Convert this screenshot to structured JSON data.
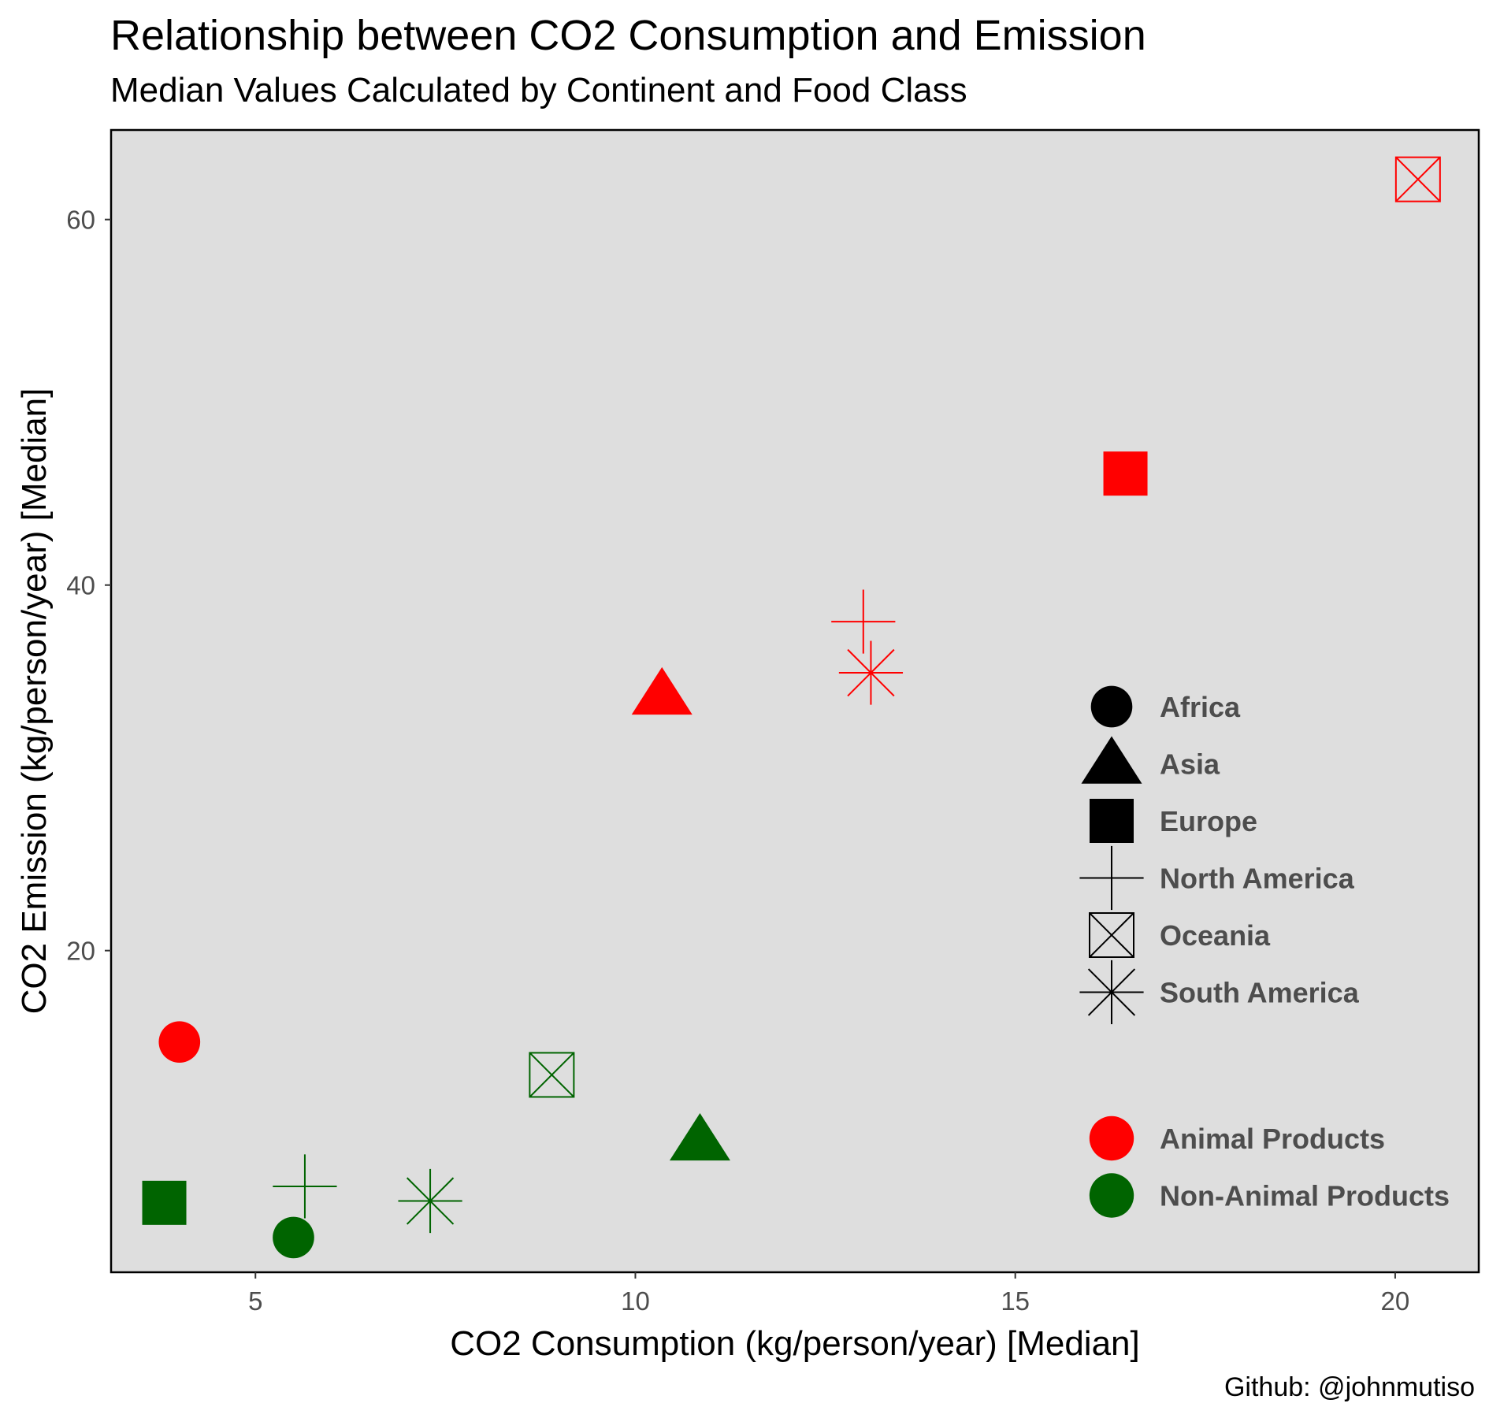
{
  "chart_data": {
    "type": "scatter",
    "title": "Relationship between CO2 Consumption and Emission",
    "subtitle": "Median Values Calculated by Continent and Food Class",
    "xlabel": "CO2 Consumption (kg/person/year) [Median]",
    "ylabel": "CO2 Emission (kg/person/year) [Median]",
    "caption": "Github: @johnmutiso",
    "xlim": [
      3.1,
      21.1
    ],
    "ylim": [
      2.4,
      64.9
    ],
    "x_ticks": [
      5,
      10,
      15,
      20
    ],
    "y_ticks": [
      20,
      40,
      60
    ],
    "grid": false,
    "background": "#dedede",
    "shape_legend": {
      "position": "right",
      "entries": [
        {
          "label": "Africa",
          "shape": "circle"
        },
        {
          "label": "Asia",
          "shape": "triangle"
        },
        {
          "label": "Europe",
          "shape": "square"
        },
        {
          "label": "North America",
          "shape": "plus"
        },
        {
          "label": "Oceania",
          "shape": "square-cross"
        },
        {
          "label": "South America",
          "shape": "asterisk"
        }
      ]
    },
    "color_legend": {
      "position": "right",
      "entries": [
        {
          "label": "Animal Products",
          "color": "#ff0000"
        },
        {
          "label": "Non-Animal Products",
          "color": "#006400"
        }
      ]
    },
    "series": [
      {
        "name": "Animal Products",
        "color": "#ff0000",
        "points": [
          {
            "continent": "Africa",
            "x": 4.0,
            "y": 15.0
          },
          {
            "continent": "Asia",
            "x": 10.35,
            "y": 34.0
          },
          {
            "continent": "Europe",
            "x": 16.45,
            "y": 46.1
          },
          {
            "continent": "North America",
            "x": 13.0,
            "y": 38.0
          },
          {
            "continent": "Oceania",
            "x": 20.3,
            "y": 62.2
          },
          {
            "continent": "South America",
            "x": 13.1,
            "y": 35.2
          }
        ]
      },
      {
        "name": "Non-Animal Products",
        "color": "#006400",
        "points": [
          {
            "continent": "Africa",
            "x": 5.5,
            "y": 4.3
          },
          {
            "continent": "Asia",
            "x": 10.85,
            "y": 9.6
          },
          {
            "continent": "Europe",
            "x": 3.8,
            "y": 6.2
          },
          {
            "continent": "North America",
            "x": 5.65,
            "y": 7.1
          },
          {
            "continent": "Oceania",
            "x": 8.9,
            "y": 13.2
          },
          {
            "continent": "South America",
            "x": 7.3,
            "y": 6.3
          }
        ]
      }
    ]
  }
}
